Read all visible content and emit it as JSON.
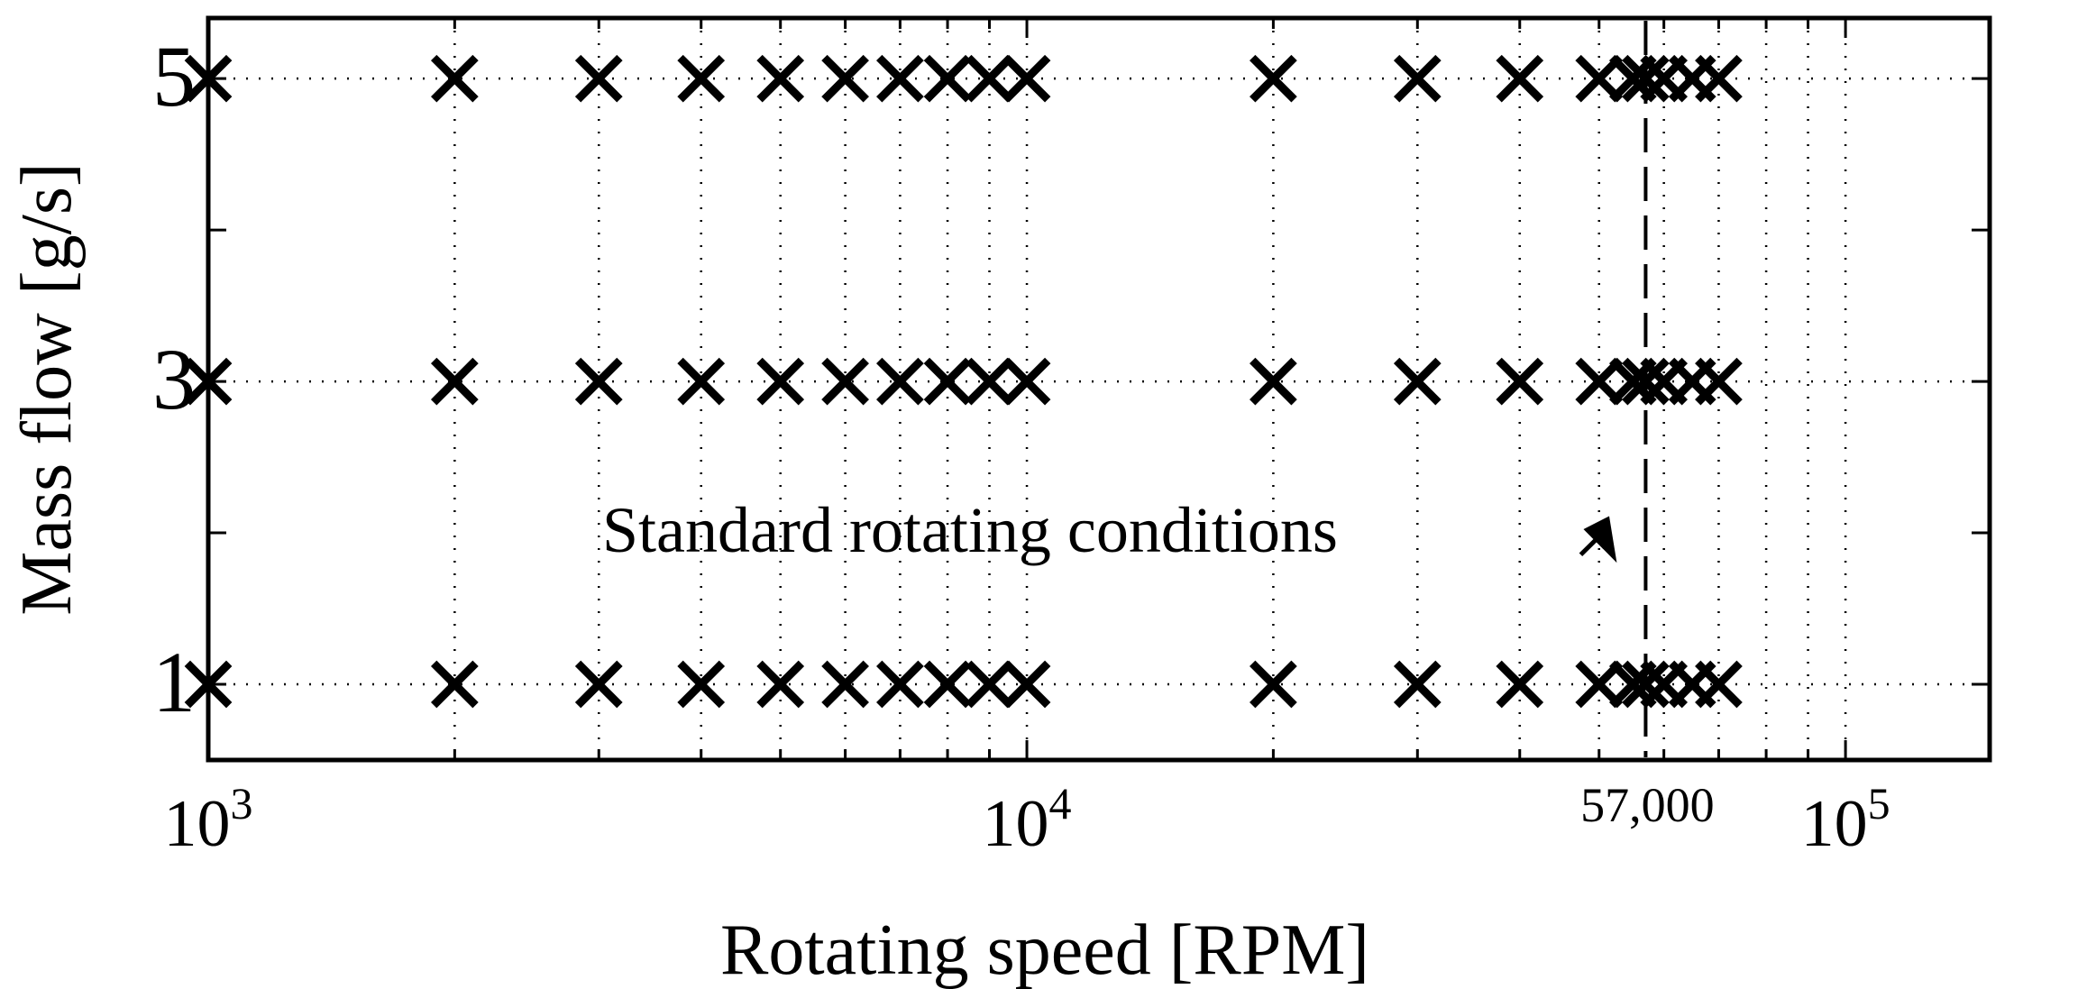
{
  "chart_data": {
    "type": "scatter",
    "title": "",
    "xlabel": "Rotating speed [RPM]",
    "ylabel": "Mass flow [g/s]",
    "xscale": "log",
    "xlim": [
      1000,
      150000
    ],
    "ylim": [
      0.5,
      5.4
    ],
    "grid": true,
    "marker": "x",
    "xticks": [
      {
        "value": 1000,
        "base": "10",
        "exp": "3"
      },
      {
        "value": 10000,
        "base": "10",
        "exp": "4"
      },
      {
        "value": 100000,
        "base": "10",
        "exp": "5"
      }
    ],
    "yticks": [
      {
        "value": 1,
        "label": "1"
      },
      {
        "value": 3,
        "label": "3"
      },
      {
        "value": 5,
        "label": "5"
      }
    ],
    "points": [
      {
        "x": 1000,
        "y": 5
      },
      {
        "x": 2000,
        "y": 5
      },
      {
        "x": 3000,
        "y": 5
      },
      {
        "x": 4000,
        "y": 5
      },
      {
        "x": 5000,
        "y": 5
      },
      {
        "x": 6000,
        "y": 5
      },
      {
        "x": 7000,
        "y": 5
      },
      {
        "x": 8000,
        "y": 5
      },
      {
        "x": 9000,
        "y": 5
      },
      {
        "x": 10000,
        "y": 5
      },
      {
        "x": 20000,
        "y": 5
      },
      {
        "x": 30000,
        "y": 5
      },
      {
        "x": 40000,
        "y": 5
      },
      {
        "x": 50000,
        "y": 5
      },
      {
        "x": 55000,
        "y": 5
      },
      {
        "x": 57000,
        "y": 5
      },
      {
        "x": 60000,
        "y": 5
      },
      {
        "x": 65000,
        "y": 5
      },
      {
        "x": 70000,
        "y": 5
      },
      {
        "x": 1000,
        "y": 3
      },
      {
        "x": 2000,
        "y": 3
      },
      {
        "x": 3000,
        "y": 3
      },
      {
        "x": 4000,
        "y": 3
      },
      {
        "x": 5000,
        "y": 3
      },
      {
        "x": 6000,
        "y": 3
      },
      {
        "x": 7000,
        "y": 3
      },
      {
        "x": 8000,
        "y": 3
      },
      {
        "x": 9000,
        "y": 3
      },
      {
        "x": 10000,
        "y": 3
      },
      {
        "x": 20000,
        "y": 3
      },
      {
        "x": 30000,
        "y": 3
      },
      {
        "x": 40000,
        "y": 3
      },
      {
        "x": 50000,
        "y": 3
      },
      {
        "x": 55000,
        "y": 3
      },
      {
        "x": 57000,
        "y": 3
      },
      {
        "x": 60000,
        "y": 3
      },
      {
        "x": 65000,
        "y": 3
      },
      {
        "x": 70000,
        "y": 3
      },
      {
        "x": 1000,
        "y": 1
      },
      {
        "x": 2000,
        "y": 1
      },
      {
        "x": 3000,
        "y": 1
      },
      {
        "x": 4000,
        "y": 1
      },
      {
        "x": 5000,
        "y": 1
      },
      {
        "x": 6000,
        "y": 1
      },
      {
        "x": 7000,
        "y": 1
      },
      {
        "x": 8000,
        "y": 1
      },
      {
        "x": 9000,
        "y": 1
      },
      {
        "x": 10000,
        "y": 1
      },
      {
        "x": 20000,
        "y": 1
      },
      {
        "x": 30000,
        "y": 1
      },
      {
        "x": 40000,
        "y": 1
      },
      {
        "x": 50000,
        "y": 1
      },
      {
        "x": 55000,
        "y": 1
      },
      {
        "x": 57000,
        "y": 1
      },
      {
        "x": 60000,
        "y": 1
      },
      {
        "x": 65000,
        "y": 1
      },
      {
        "x": 70000,
        "y": 1
      }
    ],
    "reference_line": {
      "x": 57000,
      "style": "dashed",
      "label": "57,000"
    },
    "annotation": {
      "text": "Standard rotating conditions",
      "arrow_to_x": 57000,
      "arrow_to_y": 1.85
    }
  }
}
